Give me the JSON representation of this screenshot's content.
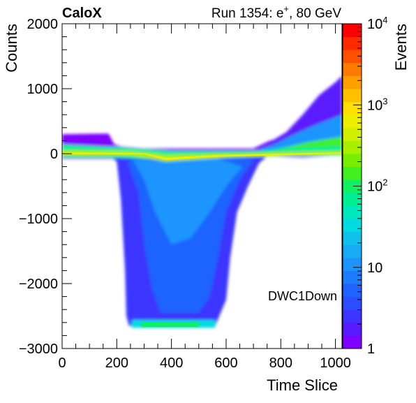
{
  "header": {
    "experiment": "CaloX",
    "run_prefix": "Run 1354: e",
    "run_superscript": "+",
    "run_suffix": ", 80 GeV"
  },
  "chart_data": {
    "type": "heatmap",
    "title": "",
    "xlabel": "Time Slice",
    "ylabel": "Counts",
    "zlabel": "Events",
    "xlim": [
      0,
      1024
    ],
    "ylim": [
      -3000,
      2000
    ],
    "zlim": [
      1,
      10000
    ],
    "z_scale": "log",
    "x_ticks": [
      0,
      200,
      400,
      600,
      800,
      1000
    ],
    "y_ticks": [
      -3000,
      -2000,
      -1000,
      0,
      1000,
      2000
    ],
    "x_tick_labels": [
      "0",
      "200",
      "400",
      "600",
      "800",
      "1000"
    ],
    "y_tick_labels": [
      "−3000",
      "−2000",
      "−1000",
      "0",
      "1000",
      "2000"
    ],
    "z_ticks": [
      {
        "value": 1,
        "base": "1",
        "exp": ""
      },
      {
        "value": 10,
        "base": "10",
        "exp": ""
      },
      {
        "value": 100,
        "base": "10",
        "exp": "2"
      },
      {
        "value": 1000,
        "base": "10",
        "exp": "3"
      },
      {
        "value": 10000,
        "base": "10",
        "exp": "4"
      }
    ],
    "palette": [
      "#7f00ff",
      "#5a1aff",
      "#3b35ff",
      "#2a4dff",
      "#1f63ff",
      "#1c7cff",
      "#1d95ff",
      "#18aaf5",
      "#10c2ea",
      "#00dbe0",
      "#00e8c0",
      "#00ef94",
      "#10f060",
      "#40f020",
      "#7aee00",
      "#a8ef00",
      "#d0f000",
      "#ecf000",
      "#ffe000",
      "#ffc000",
      "#ffa000",
      "#ff7a00",
      "#ff5000",
      "#ff2a00",
      "#ff0000"
    ],
    "annotation": "DWC1Down",
    "waveform_envelope": {
      "baseline_band": [
        -80,
        300
      ],
      "pulse_start": 200,
      "pulse_end": 720,
      "pulse_min": -2650,
      "pulse_floor_start": 250,
      "pulse_floor_end": 600,
      "rise_start": 700,
      "rise_end": 1024,
      "rise_max": 1200
    },
    "grid": false,
    "legend": "none"
  }
}
